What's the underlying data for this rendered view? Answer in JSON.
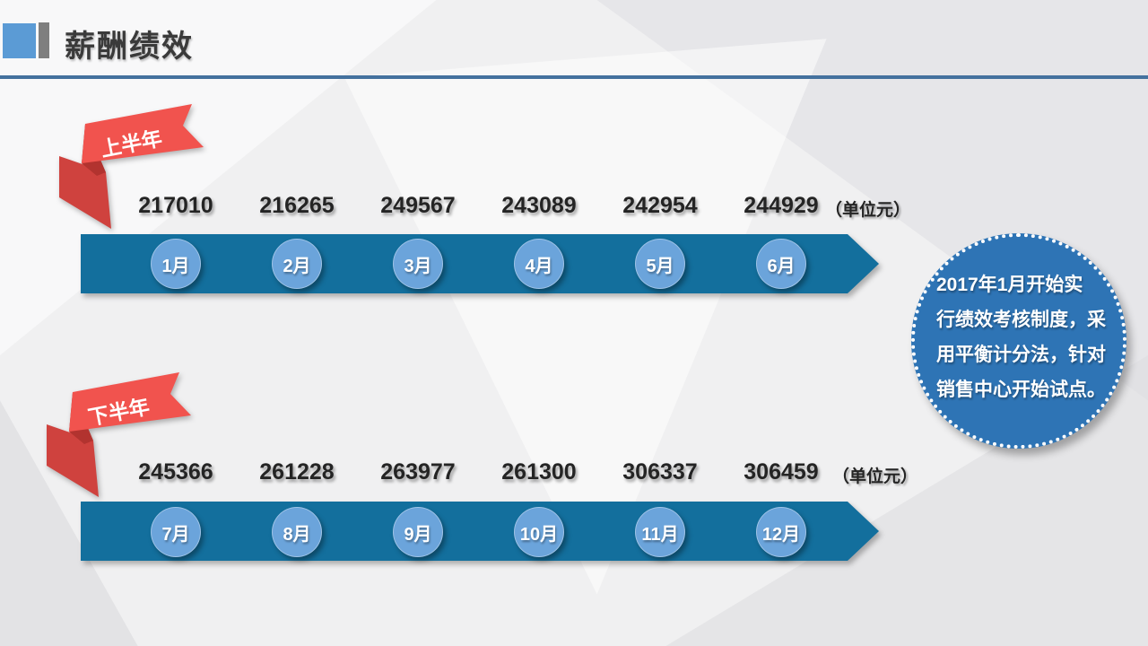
{
  "header": {
    "title": "薪酬绩效"
  },
  "sections": [
    {
      "ribbon": "上半年",
      "unit_label": "（单位元）",
      "months": [
        {
          "label": "1月",
          "value": "217010"
        },
        {
          "label": "2月",
          "value": "216265"
        },
        {
          "label": "3月",
          "value": "249567"
        },
        {
          "label": "4月",
          "value": "243089"
        },
        {
          "label": "5月",
          "value": "242954"
        },
        {
          "label": "6月",
          "value": "244929"
        }
      ]
    },
    {
      "ribbon": "下半年",
      "unit_label": "（单位元）",
      "months": [
        {
          "label": "7月",
          "value": "245366"
        },
        {
          "label": "8月",
          "value": "261228"
        },
        {
          "label": "9月",
          "value": "263977"
        },
        {
          "label": "10月",
          "value": "261300"
        },
        {
          "label": "11月",
          "value": "306337"
        },
        {
          "label": "12月",
          "value": "306459"
        }
      ]
    }
  ],
  "badge": {
    "text": "2017年1月开始实行绩效考核制度，采用平衡计分法，针对销售中心开始试点。",
    "lines": [
      "2017年1月开始实",
      "行绩效考核制度，采",
      "用平衡计分法，针对",
      "销售中心开始试点。"
    ]
  },
  "colors": {
    "accent_blue": "#5b9bd5",
    "bar_blue": "#136f9d",
    "circle_blue": "#6ba4db",
    "badge_blue": "#2e74b5",
    "ribbon_red": "#f1534e",
    "ribbon_fold_red": "#cf423e",
    "divider_blue": "#44719e"
  },
  "chart_data": {
    "type": "table",
    "title": "薪酬绩效（单位元）",
    "series": [
      {
        "name": "上半年",
        "categories": [
          "1月",
          "2月",
          "3月",
          "4月",
          "5月",
          "6月"
        ],
        "values": [
          217010,
          216265,
          249567,
          243089,
          242954,
          244929
        ]
      },
      {
        "name": "下半年",
        "categories": [
          "7月",
          "8月",
          "9月",
          "10月",
          "11月",
          "12月"
        ],
        "values": [
          245366,
          261228,
          263977,
          261300,
          306337,
          306459
        ]
      }
    ]
  }
}
